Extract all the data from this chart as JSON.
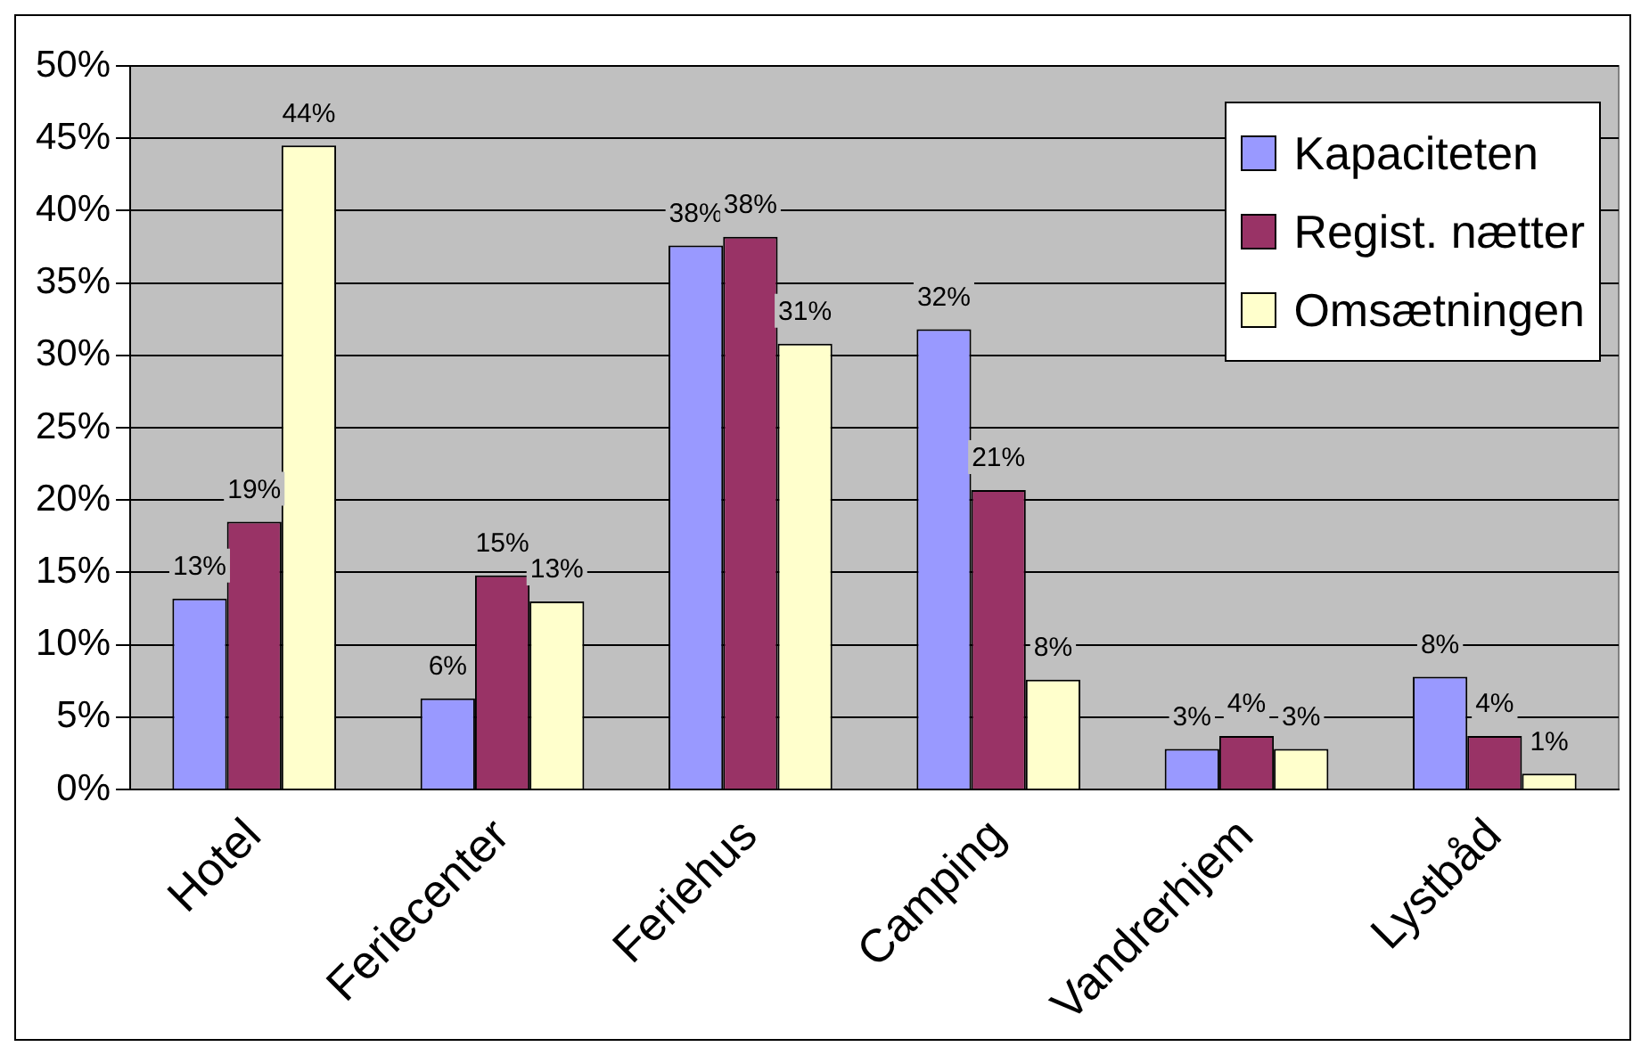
{
  "chart_data": {
    "type": "bar",
    "categories": [
      "Hotel",
      "Feriecenter",
      "Feriehus",
      "Camping",
      "Vandrerhjem",
      "Lystbåd"
    ],
    "series": [
      {
        "name": "Kapaciteten",
        "color": "#9999ff",
        "values": [
          13.2,
          6.3,
          37.6,
          31.8,
          2.8,
          7.8
        ],
        "value_labels": [
          "13%",
          "6%",
          "38%",
          "32%",
          "3%",
          "8%"
        ]
      },
      {
        "name": "Regist. nætter",
        "color": "#993366",
        "values": [
          18.5,
          14.8,
          38.2,
          20.7,
          3.7,
          3.7
        ],
        "value_labels": [
          "19%",
          "15%",
          "38%",
          "21%",
          "4%",
          "4%"
        ]
      },
      {
        "name": "Omsætningen",
        "color": "#ffffcc",
        "values": [
          44.5,
          13.0,
          30.8,
          7.6,
          2.8,
          1.1
        ],
        "value_labels": [
          "44%",
          "13%",
          "31%",
          "8%",
          "3%",
          "1%"
        ]
      }
    ],
    "ylim": [
      0,
      50
    ],
    "yticks": [
      {
        "value": 0,
        "label": "0%"
      },
      {
        "value": 5,
        "label": "5%"
      },
      {
        "value": 10,
        "label": "10%"
      },
      {
        "value": 15,
        "label": "15%"
      },
      {
        "value": 20,
        "label": "20%"
      },
      {
        "value": 25,
        "label": "25%"
      },
      {
        "value": 30,
        "label": "30%"
      },
      {
        "value": 35,
        "label": "35%"
      },
      {
        "value": 40,
        "label": "40%"
      },
      {
        "value": 45,
        "label": "45%"
      },
      {
        "value": 50,
        "label": "50%"
      }
    ],
    "grid": "y",
    "legend": "top right"
  }
}
